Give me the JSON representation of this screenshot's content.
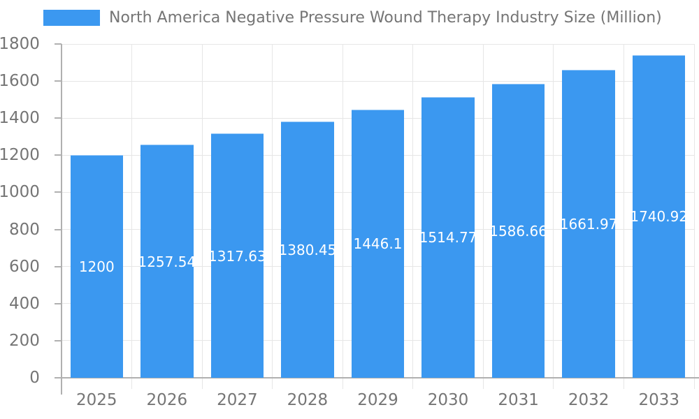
{
  "chart_data": {
    "type": "bar",
    "title": "North America Negative Pressure Wound Therapy Industry Size (Million)",
    "legend_position": "top",
    "categories": [
      "2025",
      "2026",
      "2027",
      "2028",
      "2029",
      "2030",
      "2031",
      "2032",
      "2033"
    ],
    "series": [
      {
        "name": "North America Negative Pressure Wound Therapy Industry Size (Million)",
        "values": [
          1200,
          1257.54,
          1317.63,
          1380.45,
          1446.1,
          1514.77,
          1586.66,
          1661.97,
          1740.92
        ]
      }
    ],
    "bar_labels": [
      "1200",
      "1257.54",
      "1317.63",
      "1380.45",
      "1446.1",
      "1514.77",
      "1586.66",
      "1661.97",
      "1740.92"
    ],
    "xlabel": "",
    "ylabel": "",
    "ylim": [
      0,
      1800
    ],
    "ytick_step": 200,
    "yticks": [
      0,
      200,
      400,
      600,
      800,
      1000,
      1200,
      1400,
      1600,
      1800
    ],
    "grid": true,
    "colors": {
      "bar": "#3b98f0",
      "grid": "#e6e6e6",
      "axis": "#b0b0b0",
      "tick_text": "#757575",
      "bar_label_text": "#ffffff",
      "background": "#ffffff"
    }
  }
}
